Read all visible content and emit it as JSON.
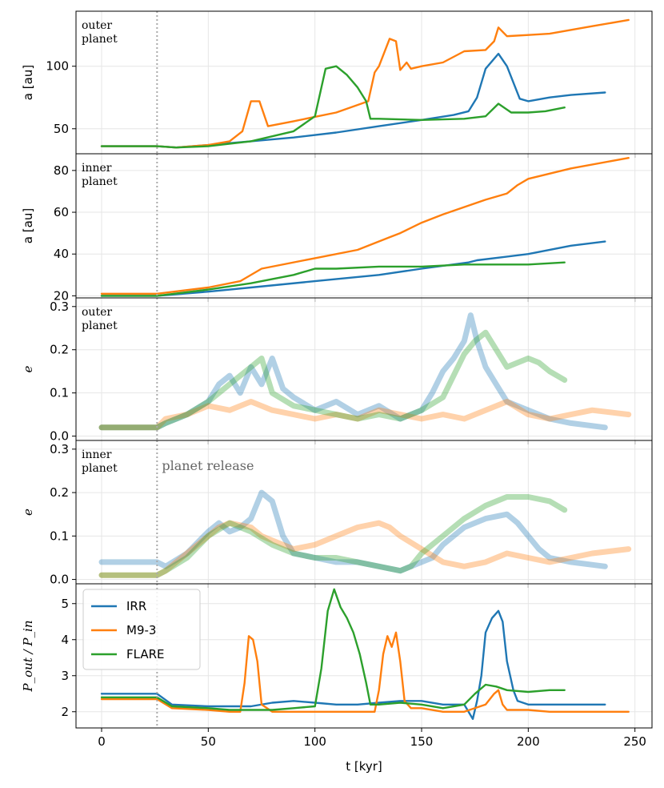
{
  "chart_data": {
    "type": "line",
    "xlabel": "t [kyr]",
    "xlim": [
      -12,
      258
    ],
    "xticks": [
      0,
      50,
      100,
      150,
      200,
      250
    ],
    "release_time": 26,
    "release_label": "planet release",
    "colors": {
      "IRR": "#1f77b4",
      "M9-3": "#ff7f0e",
      "FLARE": "#2ca02c"
    },
    "legend": [
      "IRR",
      "M9-3",
      "FLARE"
    ],
    "panels": [
      {
        "id": "a_outer",
        "ylabel": "a [au]",
        "note": [
          "outer",
          "planet"
        ],
        "ylim": [
          30,
          144
        ],
        "yticks": [
          50,
          100
        ],
        "alpha": 1.0,
        "series": [
          {
            "name": "IRR",
            "x": [
              0,
              26,
              35,
              50,
              70,
              90,
              110,
              130,
              150,
              165,
              172,
              176,
              180,
              186,
              190,
              196,
              200,
              210,
              220,
              236
            ],
            "y": [
              36,
              36,
              35,
              37,
              40,
              43,
              47,
              52,
              57,
              61,
              64,
              75,
              98,
              110,
              100,
              74,
              72,
              75,
              77,
              79
            ]
          },
          {
            "name": "M9-3",
            "x": [
              0,
              26,
              35,
              50,
              60,
              66,
              70,
              74,
              78,
              90,
              110,
              125,
              128,
              130,
              135,
              138,
              140,
              143,
              145,
              150,
              160,
              170,
              180,
              184,
              186,
              190,
              200,
              210,
              230,
              247
            ],
            "y": [
              36,
              36,
              35,
              37,
              40,
              48,
              72,
              72,
              52,
              56,
              63,
              72,
              95,
              100,
              122,
              120,
              97,
              103,
              98,
              100,
              103,
              112,
              113,
              120,
              131,
              124,
              125,
              126,
              132,
              137
            ]
          },
          {
            "name": "FLARE",
            "x": [
              0,
              26,
              35,
              50,
              70,
              90,
              100,
              105,
              110,
              115,
              120,
              124,
              126,
              130,
              150,
              170,
              180,
              186,
              192,
              200,
              208,
              217
            ],
            "y": [
              36,
              36,
              35,
              36,
              40,
              48,
              60,
              98,
              100,
              93,
              83,
              72,
              58,
              58,
              57,
              58,
              60,
              70,
              63,
              63,
              64,
              67
            ]
          }
        ]
      },
      {
        "id": "a_inner",
        "ylabel": "a [au]",
        "note": [
          "inner",
          "planet"
        ],
        "ylim": [
          19,
          88
        ],
        "yticks": [
          20,
          40,
          60,
          80
        ],
        "alpha": 1.0,
        "series": [
          {
            "name": "IRR",
            "x": [
              0,
              26,
              50,
              70,
              100,
              130,
              150,
              172,
              176,
              200,
              220,
              236
            ],
            "y": [
              20,
              20,
              22,
              24,
              27,
              30,
              33,
              36,
              37,
              40,
              44,
              46
            ]
          },
          {
            "name": "M9-3",
            "x": [
              0,
              26,
              50,
              65,
              75,
              100,
              120,
              135,
              140,
              150,
              160,
              180,
              190,
              195,
              200,
              220,
              247
            ],
            "y": [
              21,
              21,
              24,
              27,
              33,
              38,
              42,
              48,
              50,
              55,
              59,
              66,
              69,
              73,
              76,
              81,
              86
            ]
          },
          {
            "name": "FLARE",
            "x": [
              0,
              26,
              50,
              70,
              90,
              100,
              110,
              130,
              150,
              170,
              200,
              217
            ],
            "y": [
              20,
              20,
              23,
              26,
              30,
              33,
              33,
              34,
              34,
              35,
              35,
              36
            ]
          }
        ]
      },
      {
        "id": "e_outer",
        "ylabel": "e",
        "note": [
          "outer",
          "planet"
        ],
        "ylim": [
          -0.01,
          0.32
        ],
        "yticks": [
          0.0,
          0.1,
          0.2,
          0.3
        ],
        "alpha": 0.35,
        "series": [
          {
            "name": "IRR",
            "x": [
              0,
              26,
              30,
              40,
              50,
              55,
              60,
              65,
              70,
              75,
              80,
              85,
              90,
              100,
              110,
              120,
              130,
              140,
              150,
              155,
              160,
              165,
              170,
              173,
              176,
              180,
              185,
              190,
              200,
              210,
              220,
              236
            ],
            "y": [
              0.02,
              0.02,
              0.03,
              0.05,
              0.08,
              0.12,
              0.14,
              0.1,
              0.16,
              0.12,
              0.18,
              0.11,
              0.09,
              0.06,
              0.08,
              0.05,
              0.07,
              0.04,
              0.06,
              0.1,
              0.15,
              0.18,
              0.22,
              0.28,
              0.22,
              0.16,
              0.12,
              0.08,
              0.06,
              0.04,
              0.03,
              0.02
            ]
          },
          {
            "name": "M9-3",
            "x": [
              0,
              26,
              30,
              40,
              50,
              60,
              70,
              80,
              90,
              100,
              110,
              120,
              130,
              140,
              150,
              160,
              170,
              180,
              190,
              200,
              210,
              220,
              230,
              247
            ],
            "y": [
              0.02,
              0.02,
              0.04,
              0.05,
              0.07,
              0.06,
              0.08,
              0.06,
              0.05,
              0.04,
              0.05,
              0.04,
              0.06,
              0.05,
              0.04,
              0.05,
              0.04,
              0.06,
              0.08,
              0.05,
              0.04,
              0.05,
              0.06,
              0.05
            ]
          },
          {
            "name": "FLARE",
            "x": [
              0,
              26,
              30,
              40,
              50,
              60,
              70,
              75,
              80,
              90,
              100,
              110,
              120,
              130,
              140,
              150,
              160,
              165,
              170,
              175,
              180,
              185,
              190,
              195,
              200,
              205,
              210,
              217
            ],
            "y": [
              0.02,
              0.02,
              0.03,
              0.05,
              0.08,
              0.12,
              0.16,
              0.18,
              0.1,
              0.07,
              0.06,
              0.05,
              0.04,
              0.05,
              0.04,
              0.06,
              0.09,
              0.14,
              0.19,
              0.22,
              0.24,
              0.2,
              0.16,
              0.17,
              0.18,
              0.17,
              0.15,
              0.13
            ]
          }
        ]
      },
      {
        "id": "e_inner",
        "ylabel": "e",
        "note": [
          "inner",
          "planet"
        ],
        "ylim": [
          -0.01,
          0.32
        ],
        "yticks": [
          0.0,
          0.1,
          0.2,
          0.3
        ],
        "alpha": 0.35,
        "series": [
          {
            "name": "IRR",
            "x": [
              0,
              26,
              30,
              40,
              50,
              55,
              60,
              65,
              70,
              75,
              80,
              85,
              90,
              100,
              110,
              120,
              130,
              140,
              150,
              155,
              160,
              165,
              170,
              180,
              190,
              195,
              200,
              205,
              210,
              220,
              236
            ],
            "y": [
              0.04,
              0.04,
              0.03,
              0.06,
              0.11,
              0.13,
              0.11,
              0.12,
              0.14,
              0.2,
              0.18,
              0.1,
              0.06,
              0.05,
              0.04,
              0.04,
              0.03,
              0.02,
              0.04,
              0.05,
              0.08,
              0.1,
              0.12,
              0.14,
              0.15,
              0.13,
              0.1,
              0.07,
              0.05,
              0.04,
              0.03
            ]
          },
          {
            "name": "M9-3",
            "x": [
              0,
              26,
              30,
              40,
              50,
              55,
              60,
              70,
              75,
              80,
              90,
              100,
              110,
              120,
              130,
              135,
              140,
              150,
              160,
              170,
              180,
              190,
              200,
              210,
              220,
              230,
              247
            ],
            "y": [
              0.01,
              0.01,
              0.02,
              0.06,
              0.1,
              0.12,
              0.13,
              0.12,
              0.1,
              0.09,
              0.07,
              0.08,
              0.1,
              0.12,
              0.13,
              0.12,
              0.1,
              0.07,
              0.04,
              0.03,
              0.04,
              0.06,
              0.05,
              0.04,
              0.05,
              0.06,
              0.07
            ]
          },
          {
            "name": "FLARE",
            "x": [
              0,
              26,
              30,
              40,
              50,
              60,
              70,
              80,
              90,
              100,
              110,
              120,
              130,
              140,
              145,
              150,
              160,
              170,
              180,
              190,
              200,
              210,
              217
            ],
            "y": [
              0.01,
              0.01,
              0.02,
              0.05,
              0.1,
              0.13,
              0.11,
              0.08,
              0.06,
              0.05,
              0.05,
              0.04,
              0.03,
              0.02,
              0.03,
              0.06,
              0.1,
              0.14,
              0.17,
              0.19,
              0.19,
              0.18,
              0.16
            ]
          }
        ]
      },
      {
        "id": "period_ratio",
        "ylabel": "P_out / P_in",
        "ylim": [
          1.55,
          5.55
        ],
        "yticks": [
          2,
          3,
          4,
          5
        ],
        "alpha": 1.0,
        "series": [
          {
            "name": "IRR",
            "x": [
              0,
              26,
              33,
              50,
              60,
              70,
              80,
              90,
              100,
              110,
              120,
              130,
              140,
              150,
              160,
              170,
              174,
              176,
              178,
              180,
              183,
              186,
              188,
              190,
              193,
              195,
              200,
              210,
              220,
              236
            ],
            "y": [
              2.5,
              2.5,
              2.2,
              2.15,
              2.15,
              2.15,
              2.25,
              2.3,
              2.25,
              2.2,
              2.2,
              2.25,
              2.3,
              2.3,
              2.2,
              2.2,
              1.8,
              2.3,
              3.0,
              4.2,
              4.6,
              4.8,
              4.5,
              3.4,
              2.6,
              2.3,
              2.2,
              2.2,
              2.2,
              2.2
            ]
          },
          {
            "name": "M9-3",
            "x": [
              0,
              26,
              33,
              50,
              60,
              65,
              67,
              69,
              71,
              73,
              75,
              80,
              90,
              100,
              110,
              120,
              128,
              130,
              132,
              134,
              136,
              138,
              140,
              142,
              145,
              150,
              160,
              170,
              180,
              184,
              186,
              188,
              190,
              200,
              210,
              220,
              230,
              247
            ],
            "y": [
              2.35,
              2.35,
              2.1,
              2.05,
              2.0,
              2.0,
              2.8,
              4.1,
              4.0,
              3.4,
              2.2,
              2.0,
              2.0,
              2.0,
              2.0,
              2.0,
              2.0,
              2.6,
              3.6,
              4.1,
              3.8,
              4.2,
              3.4,
              2.3,
              2.1,
              2.1,
              2.0,
              2.0,
              2.2,
              2.5,
              2.6,
              2.2,
              2.05,
              2.05,
              2.0,
              2.0,
              2.0,
              2.0
            ]
          },
          {
            "name": "FLARE",
            "x": [
              0,
              26,
              33,
              50,
              60,
              70,
              80,
              90,
              100,
              103,
              106,
              109,
              112,
              115,
              118,
              121,
              124,
              126,
              128,
              130,
              140,
              150,
              160,
              170,
              175,
              180,
              185,
              190,
              200,
              210,
              217
            ],
            "y": [
              2.4,
              2.4,
              2.15,
              2.1,
              2.05,
              2.05,
              2.05,
              2.1,
              2.15,
              3.2,
              4.8,
              5.4,
              4.9,
              4.6,
              4.2,
              3.6,
              2.8,
              2.2,
              2.2,
              2.2,
              2.25,
              2.2,
              2.1,
              2.2,
              2.5,
              2.75,
              2.7,
              2.6,
              2.55,
              2.6,
              2.6
            ]
          }
        ]
      }
    ]
  }
}
